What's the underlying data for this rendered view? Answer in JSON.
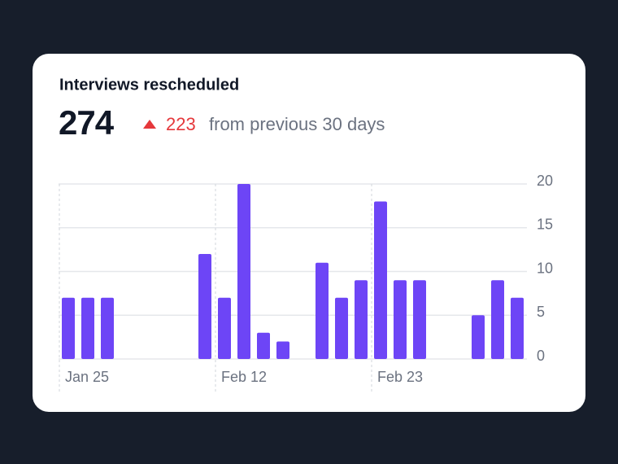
{
  "chart_data": {
    "type": "bar",
    "title": "Interviews rescheduled",
    "total": "274",
    "change": "223",
    "change_text": "from previous 30 days",
    "categories": [
      "Jan 25",
      null,
      null,
      null,
      null,
      null,
      null,
      null,
      "Feb 12",
      null,
      null,
      null,
      null,
      null,
      null,
      null,
      "Feb 23",
      null,
      null,
      null,
      null,
      null,
      null,
      null
    ],
    "values": [
      7,
      7,
      7,
      0,
      0,
      0,
      0,
      12,
      7,
      20,
      3,
      2,
      0,
      11,
      7,
      9,
      18,
      9,
      9,
      0,
      0,
      5,
      9,
      7
    ],
    "color": "#6d45f6",
    "ylim": [
      0,
      20
    ],
    "yticks": [
      0,
      5,
      10,
      15,
      20
    ],
    "grid": true
  }
}
